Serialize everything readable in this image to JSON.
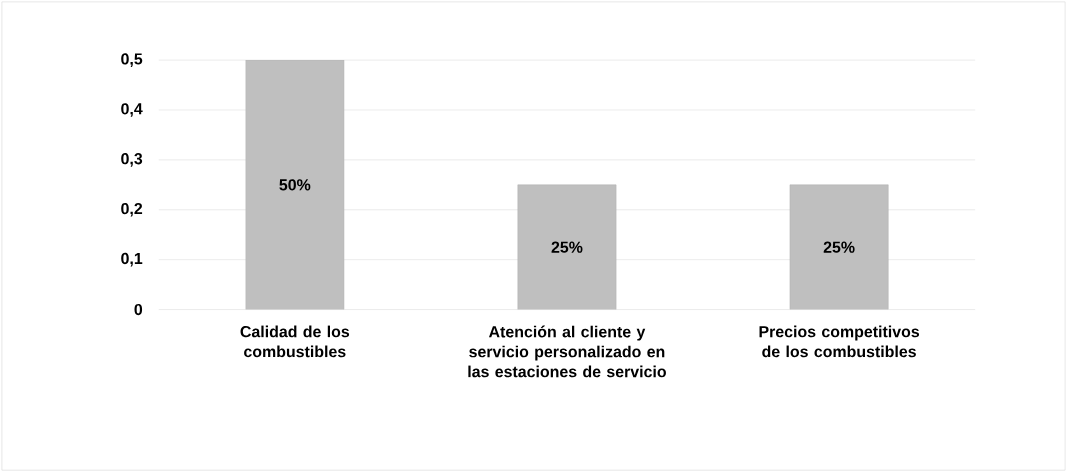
{
  "chart_data": {
    "type": "bar",
    "categories": [
      "Calidad de los combustibles",
      "Atención al cliente y servicio personalizado en las estaciones de servicio",
      "Precios competitivos de los combustibles"
    ],
    "values": [
      0.5,
      0.25,
      0.25
    ],
    "value_labels": [
      "50%",
      "25%",
      "25%"
    ],
    "color": "#bfbfbf",
    "ylim": [
      0,
      0.5
    ],
    "yticks": [
      0,
      {
        "value": 0.1,
        "label": "0,1"
      },
      {
        "value": 0.2,
        "label": "0,2"
      },
      {
        "value": 0.3,
        "label": "0,3"
      },
      {
        "value": 0.4,
        "label": "0,4"
      },
      {
        "value": 0.5,
        "label": "0,5"
      }
    ],
    "grid": "y"
  }
}
